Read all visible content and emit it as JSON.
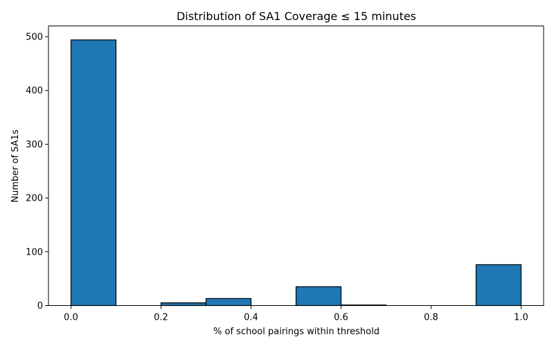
{
  "chart_data": {
    "type": "bar",
    "subtype": "histogram",
    "title": "Distribution of SA1 Coverage ≤ 15 minutes",
    "xlabel": "% of school pairings within threshold",
    "ylabel": "Number of SA1s",
    "bin_edges": [
      0.0,
      0.1,
      0.2,
      0.3,
      0.4,
      0.5,
      0.6,
      0.7,
      0.8,
      0.9,
      1.0
    ],
    "values": [
      494,
      0,
      5,
      13,
      0,
      35,
      1,
      0,
      0,
      76
    ],
    "xlim": [
      -0.05,
      1.05
    ],
    "ylim": [
      0,
      520
    ],
    "xticks": [
      0.0,
      0.2,
      0.4,
      0.6,
      0.8,
      1.0
    ],
    "xtick_labels": [
      "0.0",
      "0.2",
      "0.4",
      "0.6",
      "0.8",
      "1.0"
    ],
    "yticks": [
      0,
      100,
      200,
      300,
      400,
      500
    ],
    "ytick_labels": [
      "0",
      "100",
      "200",
      "300",
      "400",
      "500"
    ],
    "bar_color": "#1f77b4",
    "edge_color": "#000000",
    "grid": false,
    "legend": "none"
  }
}
